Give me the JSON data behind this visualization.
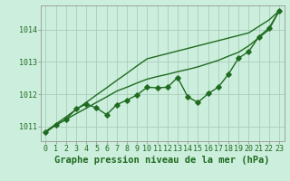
{
  "x": [
    0,
    1,
    2,
    3,
    4,
    5,
    6,
    7,
    8,
    9,
    10,
    11,
    12,
    13,
    14,
    15,
    16,
    17,
    18,
    19,
    20,
    21,
    22,
    23
  ],
  "line_upper": [
    1010.85,
    1011.08,
    1011.3,
    1011.53,
    1011.75,
    1011.98,
    1012.2,
    1012.43,
    1012.65,
    1012.88,
    1013.1,
    1013.18,
    1013.26,
    1013.34,
    1013.42,
    1013.5,
    1013.58,
    1013.66,
    1013.74,
    1013.82,
    1013.9,
    1014.1,
    1014.3,
    1014.58
  ],
  "line_lower": [
    1010.85,
    1011.05,
    1011.22,
    1011.4,
    1011.57,
    1011.75,
    1011.92,
    1012.1,
    1012.22,
    1012.35,
    1012.47,
    1012.55,
    1012.62,
    1012.7,
    1012.77,
    1012.85,
    1012.95,
    1013.05,
    1013.18,
    1013.3,
    1013.5,
    1013.75,
    1014.0,
    1014.58
  ],
  "line_jagged": [
    1010.82,
    1011.05,
    1011.22,
    1011.55,
    1011.7,
    1011.58,
    1011.37,
    1011.68,
    1011.82,
    1011.98,
    1012.22,
    1012.2,
    1012.22,
    1012.52,
    1011.92,
    1011.75,
    1012.02,
    1012.22,
    1012.62,
    1013.12,
    1013.32,
    1013.78,
    1014.05,
    1014.58
  ],
  "ylim": [
    1010.55,
    1014.75
  ],
  "yticks": [
    1011,
    1012,
    1013,
    1014
  ],
  "xticks": [
    0,
    1,
    2,
    3,
    4,
    5,
    6,
    7,
    8,
    9,
    10,
    11,
    12,
    13,
    14,
    15,
    16,
    17,
    18,
    19,
    20,
    21,
    22,
    23
  ],
  "xlabel": "Graphe pression niveau de la mer (hPa)",
  "line_color": "#1f6b1f",
  "bg_color": "#cceedd",
  "grid_color": "#aaccbb",
  "marker": "D",
  "marker_size": 2.8,
  "linewidth": 1.0,
  "xlabel_fontsize": 7.5,
  "tick_fontsize": 6.0
}
